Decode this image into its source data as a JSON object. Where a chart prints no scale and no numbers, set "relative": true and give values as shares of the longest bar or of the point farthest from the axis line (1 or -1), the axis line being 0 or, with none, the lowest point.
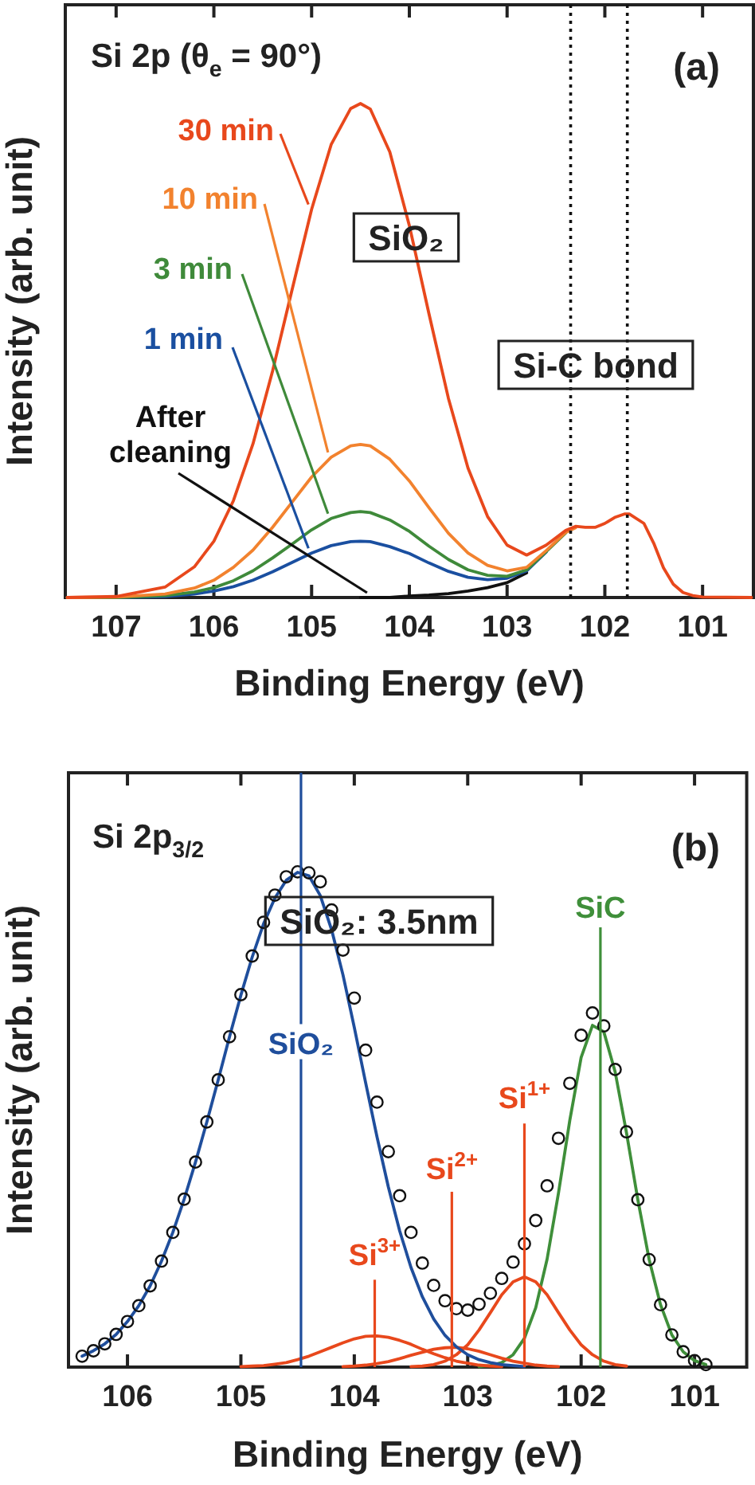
{
  "chart_data": [
    {
      "type": "line",
      "title": "Si 2p (θ$_{e}$ = 90°)",
      "xlabel": "Binding Energy (eV)",
      "ylabel": "Intensity (arb. unit)",
      "relative": true,
      "xlim": [
        107.52,
        100.48
      ],
      "xticks": [
        107,
        106,
        105,
        104,
        103,
        102,
        101
      ],
      "x": [
        107.5,
        107,
        106.5,
        106.2,
        106,
        105.8,
        105.6,
        105.4,
        105.2,
        105,
        104.8,
        104.6,
        104.5,
        104.4,
        104.2,
        104,
        103.8,
        103.6,
        103.4,
        103.2,
        103,
        102.8,
        102.6,
        102.4,
        102.3,
        102.2,
        102.1,
        102,
        101.9,
        101.8,
        101.75,
        101.6,
        101.5,
        101.4,
        101.3,
        101.2,
        101.1,
        101,
        100.5
      ],
      "series": [
        {
          "name": "30 min",
          "color": "#e8481c",
          "values": [
            0,
            0.002,
            0.021,
            0.062,
            0.114,
            0.196,
            0.311,
            0.458,
            0.623,
            0.786,
            0.917,
            0.99,
            1,
            0.989,
            0.902,
            0.753,
            0.575,
            0.403,
            0.262,
            0.164,
            0.106,
            0.086,
            0.106,
            0.136,
            0.144,
            0.142,
            0.142,
            0.15,
            0.162,
            0.169,
            0.169,
            0.15,
            0.11,
            0.06,
            0.027,
            0.01,
            0.004,
            0.001,
            0
          ]
        },
        {
          "name": "10 min",
          "color": "#f2822e",
          "values": [
            0,
            0.001,
            0.007,
            0.019,
            0.035,
            0.061,
            0.096,
            0.142,
            0.193,
            0.244,
            0.284,
            0.307,
            0.31,
            0.307,
            0.28,
            0.236,
            0.182,
            0.13,
            0.09,
            0.065,
            0.054,
            0.061,
            0.095,
            0.132,
            0.141,
            null,
            null,
            null,
            null,
            null,
            null,
            null,
            null,
            null,
            null,
            null,
            null,
            null,
            null
          ]
        },
        {
          "name": "3 min",
          "color": "#3f8a3a",
          "values": [
            0,
            0,
            0.004,
            0.011,
            0.02,
            0.034,
            0.054,
            0.08,
            0.108,
            0.137,
            0.16,
            0.172,
            0.174,
            0.172,
            0.157,
            0.134,
            0.104,
            0.077,
            0.056,
            0.045,
            0.043,
            0.056,
            0.093,
            0.131,
            null,
            null,
            null,
            null,
            null,
            null,
            null,
            null,
            null,
            null,
            null,
            null,
            null,
            null,
            null
          ]
        },
        {
          "name": "1 min",
          "color": "#1a4fa0",
          "values": [
            0,
            0,
            0.002,
            0.007,
            0.013,
            0.022,
            0.035,
            0.052,
            0.071,
            0.09,
            0.105,
            0.113,
            0.114,
            0.113,
            0.103,
            0.089,
            0.07,
            0.053,
            0.041,
            0.036,
            0.039,
            0.054,
            0.092,
            null,
            null,
            null,
            null,
            null,
            null,
            null,
            null,
            null,
            null,
            null,
            null,
            null,
            null,
            null,
            null
          ]
        },
        {
          "name": "After cleaning",
          "color": "#111111",
          "values": [
            null,
            null,
            null,
            null,
            null,
            null,
            null,
            null,
            null,
            null,
            null,
            null,
            0,
            0,
            0,
            0.003,
            0.005,
            0.008,
            0.013,
            0.02,
            0.03,
            0.05,
            null,
            null,
            null,
            null,
            null,
            null,
            null,
            null,
            null,
            null,
            null,
            null,
            null,
            null,
            null,
            null,
            null
          ]
        }
      ],
      "ref_lines": [
        {
          "axis": "x",
          "value": 102.35,
          "color": "#111111",
          "line_style": "dotted"
        },
        {
          "axis": "x",
          "value": 101.77,
          "color": "#111111",
          "line_style": "dotted"
        }
      ],
      "annotations": [
        "(a)",
        "SiO₂",
        "Si-C bond"
      ]
    },
    {
      "type": "line",
      "title": "Si 2p$_{3/2}$",
      "xlabel": "Binding Energy (eV)",
      "ylabel": "Intensity (arb. unit)",
      "relative": true,
      "xlim": [
        106.52,
        100.54
      ],
      "xticks": [
        106,
        105,
        104,
        103,
        102,
        101
      ],
      "x": [
        106.4,
        106.3,
        106.2,
        106.1,
        106,
        105.9,
        105.8,
        105.7,
        105.6,
        105.5,
        105.4,
        105.3,
        105.2,
        105.1,
        105,
        104.9,
        104.8,
        104.7,
        104.6,
        104.5,
        104.4,
        104.3,
        104.2,
        104.1,
        104,
        103.9,
        103.8,
        103.7,
        103.6,
        103.5,
        103.4,
        103.3,
        103.2,
        103.1,
        103,
        102.9,
        102.8,
        102.7,
        102.6,
        102.5,
        102.4,
        102.3,
        102.2,
        102.1,
        102,
        101.9,
        101.8,
        101.7,
        101.6,
        101.5,
        101.4,
        101.3,
        101.2,
        101.1,
        101,
        100.9
      ],
      "series": [
        {
          "type": "scatter",
          "marker": "circle",
          "color": "#111111",
          "values": [
            0.022,
            0.033,
            0.047,
            0.066,
            0.092,
            0.124,
            0.164,
            0.214,
            0.272,
            0.339,
            0.414,
            0.495,
            0.58,
            0.667,
            0.752,
            0.83,
            0.898,
            0.953,
            0.99,
            1,
            0.998,
            0.98,
            0.923,
            0.842,
            0.745,
            0.64,
            0.535,
            0.435,
            0.346,
            0.272,
            0.21,
            0.165,
            0.134,
            0.118,
            0.115,
            0.127,
            0.149,
            0.179,
            0.212,
            0.249,
            0.296,
            0.366,
            0.462,
            0.573,
            0.67,
            0.715,
            0.689,
            0.601,
            0.475,
            0.338,
            0.217,
            0.126,
            0.065,
            0.031,
            0.013,
            0.005
          ]
        },
        {
          "color": "#1f4e9c",
          "values": [
            0.022,
            0.033,
            0.047,
            0.066,
            0.092,
            0.124,
            0.164,
            0.214,
            0.272,
            0.339,
            0.414,
            0.495,
            0.58,
            0.667,
            0.751,
            0.828,
            0.895,
            0.947,
            0.983,
            0.999,
            0.992,
            0.952,
            0.883,
            0.792,
            0.686,
            0.574,
            0.465,
            0.364,
            0.275,
            0.201,
            0.142,
            0.097,
            0.064,
            0.041,
            0.025,
            0.015,
            0.009,
            0.005,
            0.003,
            0.001,
            null,
            null,
            null,
            null,
            null,
            null,
            null,
            null,
            null,
            null,
            null,
            null,
            null,
            null,
            null,
            null
          ]
        },
        {
          "color": "#e8481c",
          "values": [
            null,
            null,
            null,
            null,
            null,
            null,
            null,
            null,
            null,
            null,
            null,
            null,
            null,
            null,
            0.001,
            0.002,
            0.003,
            0.006,
            0.009,
            0.015,
            0.022,
            0.031,
            0.04,
            0.049,
            0.057,
            0.062,
            0.063,
            0.06,
            0.054,
            0.046,
            0.036,
            0.027,
            0.019,
            0.012,
            0.008,
            0.004,
            0.002,
            0.001,
            null,
            null,
            null,
            null,
            null,
            null,
            null,
            null,
            null,
            null,
            null,
            null,
            null,
            null,
            null,
            null,
            null,
            null
          ]
        },
        {
          "color": "#e8481c",
          "values": [
            null,
            null,
            null,
            null,
            null,
            null,
            null,
            null,
            null,
            null,
            null,
            null,
            null,
            null,
            null,
            null,
            null,
            null,
            null,
            null,
            null,
            null,
            null,
            0.001,
            0.002,
            0.004,
            0.007,
            0.011,
            0.017,
            0.024,
            0.03,
            0.036,
            0.039,
            0.04,
            0.037,
            0.032,
            0.025,
            0.018,
            0.012,
            0.008,
            0.004,
            0.002,
            0.001,
            null,
            null,
            null,
            null,
            null,
            null,
            null,
            null,
            null,
            null,
            null,
            null,
            null
          ]
        },
        {
          "color": "#e8481c",
          "values": [
            null,
            null,
            null,
            null,
            null,
            null,
            null,
            null,
            null,
            null,
            null,
            null,
            null,
            null,
            null,
            null,
            null,
            null,
            null,
            null,
            null,
            null,
            null,
            null,
            null,
            null,
            null,
            null,
            null,
            0.001,
            0.002,
            0.005,
            0.012,
            0.025,
            0.045,
            0.075,
            0.11,
            0.146,
            0.172,
            0.182,
            0.172,
            0.146,
            0.11,
            0.075,
            0.045,
            0.025,
            0.012,
            0.005,
            0.002,
            null,
            null,
            null,
            null,
            null,
            null,
            null
          ]
        },
        {
          "color": "#3f8f3a",
          "values": [
            null,
            null,
            null,
            null,
            null,
            null,
            null,
            null,
            null,
            null,
            null,
            null,
            null,
            null,
            null,
            null,
            null,
            null,
            null,
            null,
            null,
            null,
            null,
            null,
            null,
            null,
            null,
            null,
            null,
            null,
            null,
            null,
            null,
            null,
            null,
            0.001,
            0.003,
            0.009,
            0.025,
            0.058,
            0.12,
            0.218,
            0.351,
            0.498,
            0.625,
            0.69,
            0.677,
            0.596,
            0.473,
            0.338,
            0.217,
            0.126,
            0.065,
            0.031,
            0.013,
            0.005
          ]
        }
      ],
      "ref_lines": [
        {
          "axis": "x",
          "value": 104.47,
          "label": "SiO₂",
          "color": "#1f4e9c"
        },
        {
          "axis": "x",
          "value": 103.82,
          "label": "Si$^{3+}$",
          "color": "#e8481c"
        },
        {
          "axis": "x",
          "value": 103.14,
          "label": "Si$^{2+}$",
          "color": "#e8481c"
        },
        {
          "axis": "x",
          "value": 102.5,
          "label": "Si$^{1+}$",
          "color": "#e8481c"
        },
        {
          "axis": "x",
          "value": 101.83,
          "label": "SiC",
          "color": "#3f8f3a"
        }
      ],
      "annotations": [
        "(b)",
        "SiO₂: 3.5nm"
      ]
    }
  ]
}
